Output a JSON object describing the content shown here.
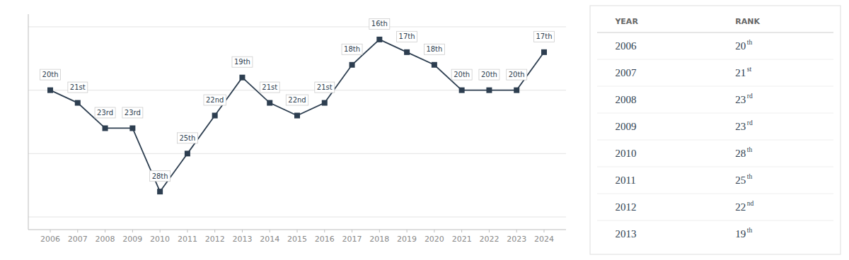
{
  "chart_data": [
    {
      "type": "line",
      "x": [
        2006,
        2007,
        2008,
        2009,
        2010,
        2011,
        2012,
        2013,
        2014,
        2015,
        2016,
        2017,
        2018,
        2019,
        2020,
        2021,
        2022,
        2023,
        2024
      ],
      "values": [
        20,
        21,
        23,
        23,
        28,
        25,
        22,
        19,
        21,
        22,
        21,
        18,
        16,
        17,
        18,
        20,
        20,
        20,
        17
      ],
      "value_labels": [
        "20th",
        "21st",
        "23rd",
        "23rd",
        "28th",
        "25th",
        "22nd",
        "19th",
        "21st",
        "22nd",
        "21st",
        "18th",
        "16th",
        "17th",
        "18th",
        "20th",
        "20th",
        "20th",
        "17th"
      ],
      "color": "#2d3e50",
      "marker": "square",
      "xlim": [
        2005.2,
        2024.8
      ],
      "xticks": [
        2006,
        2007,
        2008,
        2009,
        2010,
        2011,
        2012,
        2013,
        2014,
        2015,
        2016,
        2017,
        2018,
        2019,
        2020,
        2021,
        2022,
        2023,
        2024
      ],
      "ylim": [
        31,
        14
      ],
      "yticks": [
        15,
        20,
        25,
        30
      ],
      "grid": true,
      "tick_labels": "x",
      "data_labels": true
    },
    {
      "type": "table",
      "columns": [
        "YEAR",
        "RANK"
      ],
      "years": [
        2006,
        2007,
        2008,
        2009,
        2010,
        2011,
        2012,
        2013
      ],
      "values": [
        20,
        21,
        23,
        23,
        28,
        25,
        22,
        19
      ],
      "suffixes": [
        "th",
        "st",
        "rd",
        "rd",
        "th",
        "th",
        "nd",
        "th"
      ]
    }
  ]
}
